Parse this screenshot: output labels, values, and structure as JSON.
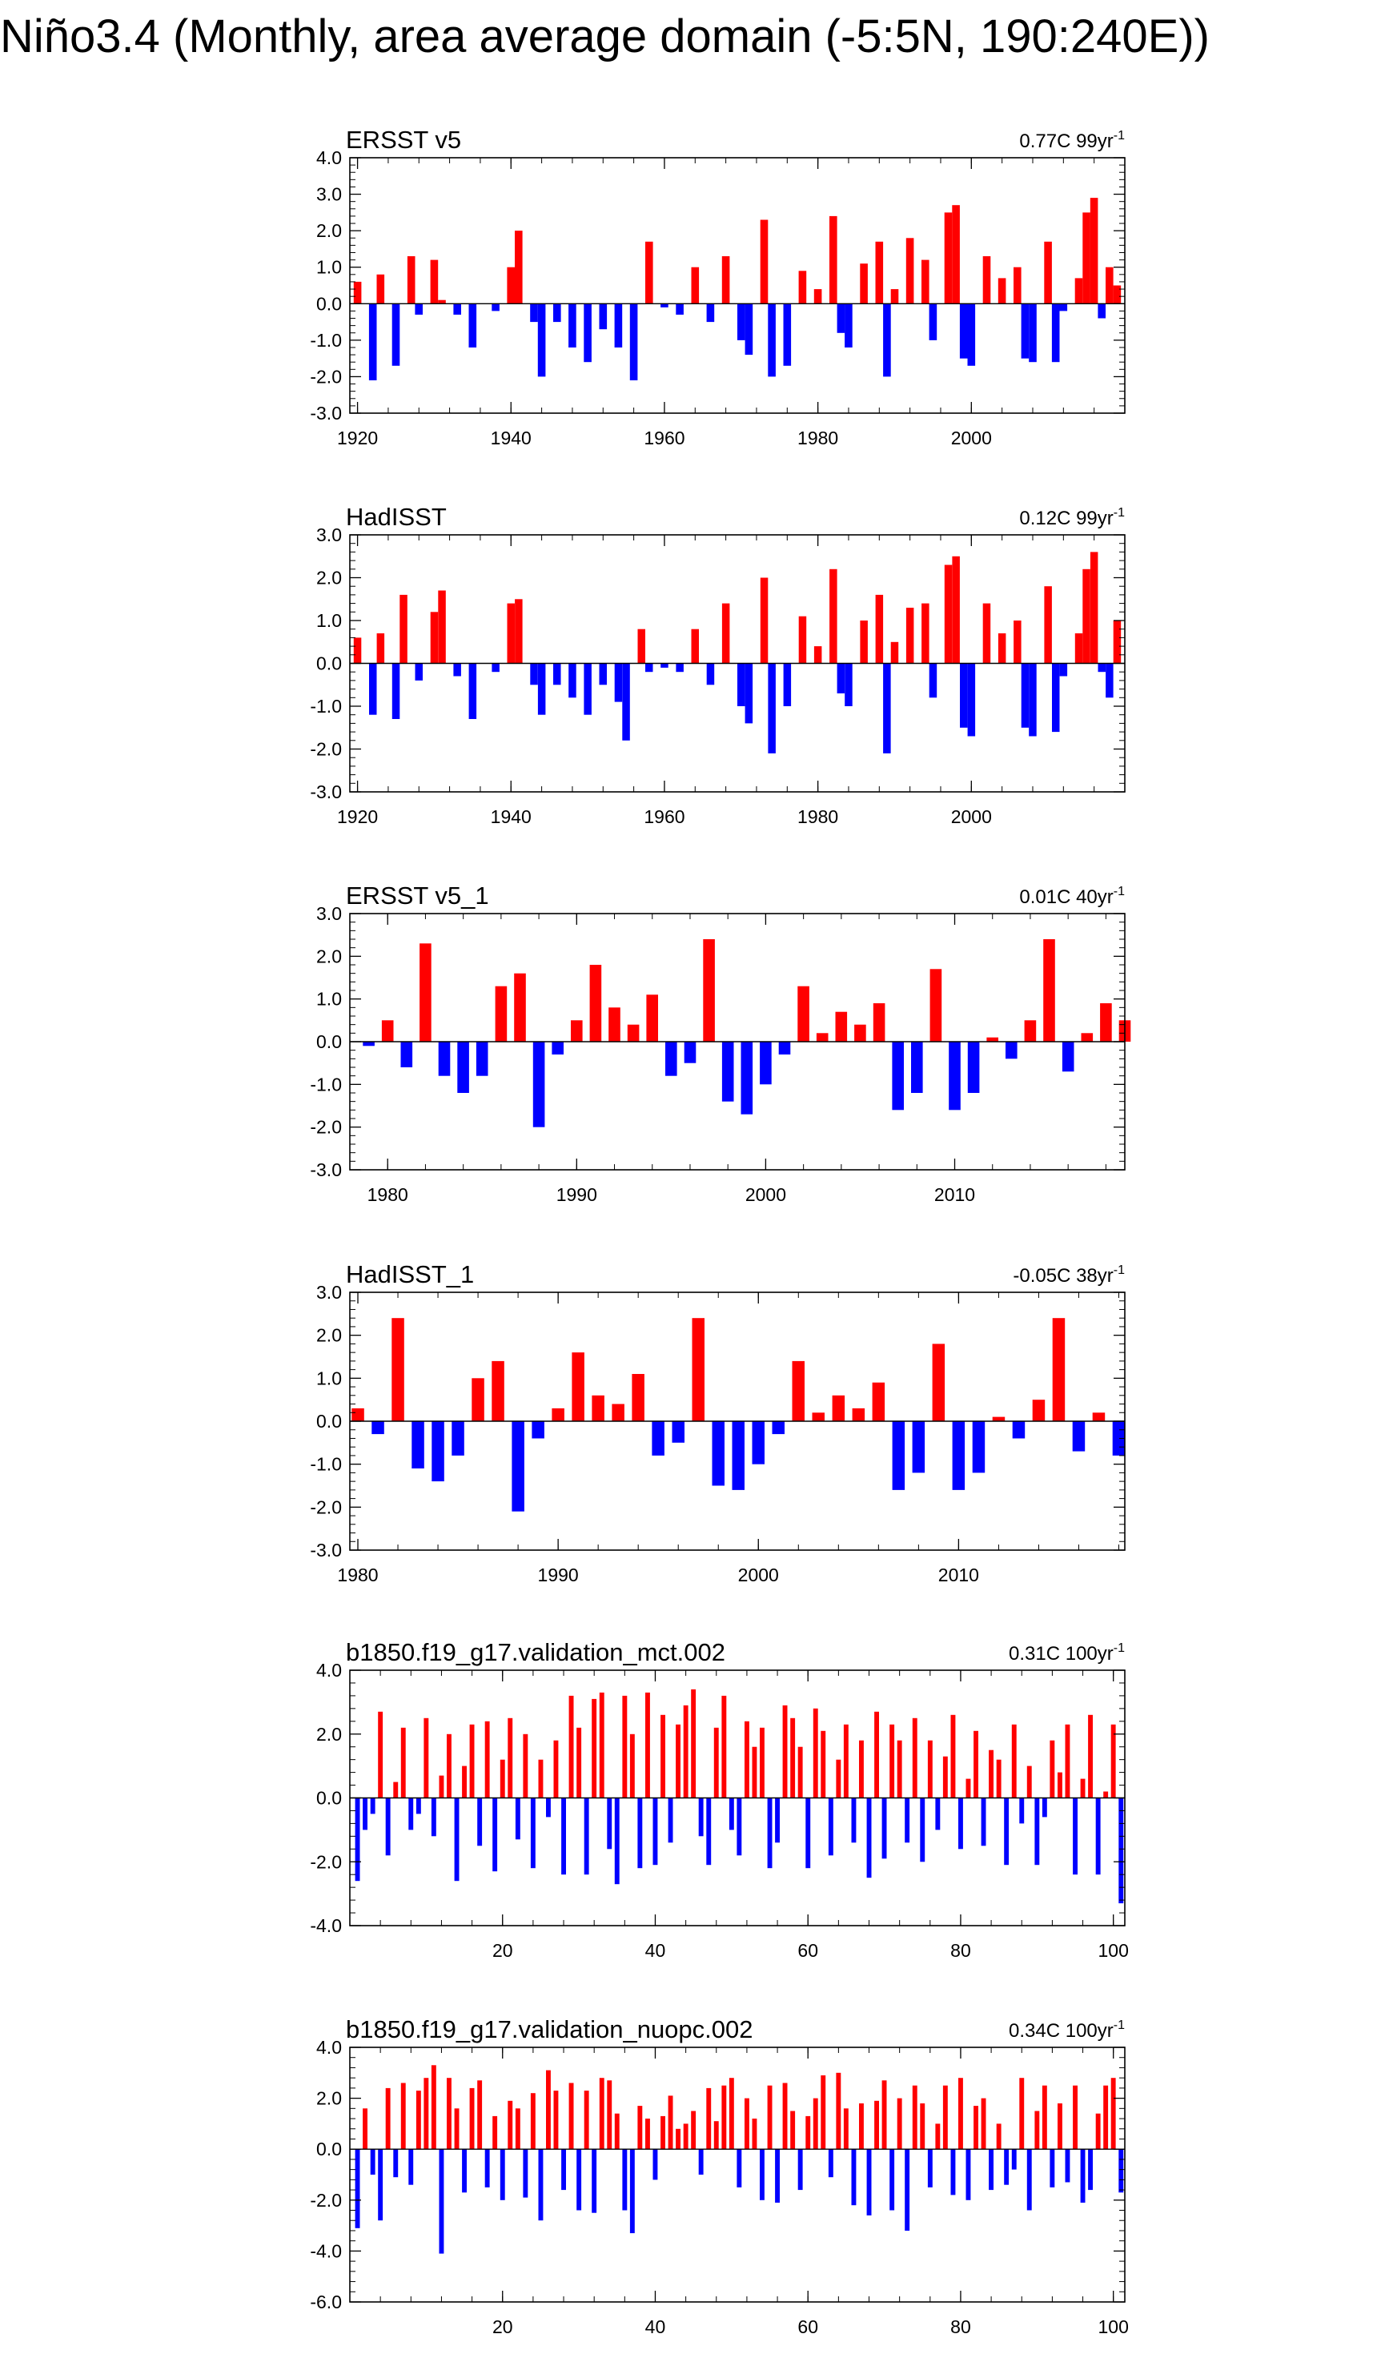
{
  "page_title": "Niño3.4 (Monthly, area average domain (-5:5N, 190:240E))",
  "colors": {
    "positive": "#ff0000",
    "negative": "#0000ff"
  },
  "chart_data": [
    {
      "type": "area",
      "title": "ERSST v5",
      "trend": {
        "value": "0.77C",
        "unit": "99yr",
        "exp": "-1"
      },
      "x": [
        1920,
        1922,
        1923,
        1925,
        1927,
        1928,
        1930,
        1931,
        1933,
        1935,
        1938,
        1940,
        1941,
        1943,
        1944,
        1946,
        1948,
        1950,
        1952,
        1954,
        1956,
        1958,
        1960,
        1962,
        1964,
        1966,
        1968,
        1970,
        1971,
        1973,
        1974,
        1976,
        1978,
        1980,
        1982,
        1983,
        1984,
        1986,
        1988,
        1989,
        1990,
        1992,
        1994,
        1995,
        1997,
        1998,
        1999,
        2000,
        2002,
        2004,
        2006,
        2007,
        2008,
        2010,
        2011,
        2012,
        2014,
        2015,
        2016,
        2017,
        2018,
        2019
      ],
      "values": [
        0.6,
        -2.1,
        0.8,
        -1.7,
        1.3,
        -0.3,
        1.2,
        0.1,
        -0.3,
        -1.2,
        -0.2,
        1.0,
        2.0,
        -0.5,
        -2.0,
        -0.5,
        -1.2,
        -1.6,
        -0.7,
        -1.2,
        -2.1,
        1.7,
        -0.1,
        -0.3,
        1.0,
        -0.5,
        1.3,
        -1.0,
        -1.4,
        2.3,
        -2.0,
        -1.7,
        0.9,
        0.4,
        2.4,
        -0.8,
        -1.2,
        1.1,
        1.7,
        -2.0,
        0.4,
        1.8,
        1.2,
        -1.0,
        2.5,
        2.7,
        -1.5,
        -1.7,
        1.3,
        0.7,
        1.0,
        -1.5,
        -1.6,
        1.7,
        -1.6,
        -0.2,
        0.7,
        2.5,
        2.9,
        -0.4,
        1.0,
        0.5
      ],
      "xlim": [
        1919,
        2020
      ],
      "ylim": [
        -3.0,
        4.0
      ],
      "ytick_values": [
        -3.0,
        -2.0,
        -1.0,
        0.0,
        1.0,
        2.0,
        3.0,
        4.0
      ],
      "ytick_labels": [
        "-3.0",
        "-2.0",
        "-1.0",
        "0.0",
        "1.0",
        "2.0",
        "3.0",
        "4.0"
      ],
      "xtick_values": [
        1920,
        1940,
        1960,
        1980,
        2000
      ],
      "xtick_labels": [
        "1920",
        "1940",
        "1960",
        "1980",
        "2000"
      ]
    },
    {
      "type": "area",
      "title": "HadISST",
      "trend": {
        "value": "0.12C",
        "unit": "99yr",
        "exp": "-1"
      },
      "x": [
        1920,
        1922,
        1923,
        1925,
        1926,
        1928,
        1930,
        1931,
        1933,
        1935,
        1938,
        1940,
        1941,
        1943,
        1944,
        1946,
        1948,
        1950,
        1952,
        1954,
        1955,
        1957,
        1958,
        1960,
        1962,
        1964,
        1966,
        1968,
        1970,
        1971,
        1973,
        1974,
        1976,
        1978,
        1980,
        1982,
        1983,
        1984,
        1986,
        1988,
        1989,
        1990,
        1992,
        1994,
        1995,
        1997,
        1998,
        1999,
        2000,
        2002,
        2004,
        2006,
        2007,
        2008,
        2010,
        2011,
        2012,
        2014,
        2015,
        2016,
        2017,
        2018,
        2019
      ],
      "values": [
        0.6,
        -1.2,
        0.7,
        -1.3,
        1.6,
        -0.4,
        1.2,
        1.7,
        -0.3,
        -1.3,
        -0.2,
        1.4,
        1.5,
        -0.5,
        -1.2,
        -0.5,
        -0.8,
        -1.2,
        -0.5,
        -0.9,
        -1.8,
        0.8,
        -0.2,
        -0.1,
        -0.2,
        0.8,
        -0.5,
        1.4,
        -1.0,
        -1.4,
        2.0,
        -2.1,
        -1.0,
        1.1,
        0.4,
        2.2,
        -0.7,
        -1.0,
        1.0,
        1.6,
        -2.1,
        0.5,
        1.3,
        1.4,
        -0.8,
        2.3,
        2.5,
        -1.5,
        -1.7,
        1.4,
        0.7,
        1.0,
        -1.5,
        -1.7,
        1.8,
        -1.6,
        -0.3,
        0.7,
        2.2,
        2.6,
        -0.2,
        -0.8,
        1.0
      ],
      "xlim": [
        1919,
        2020
      ],
      "ylim": [
        -3.0,
        3.0
      ],
      "ytick_values": [
        -3.0,
        -2.0,
        -1.0,
        0.0,
        1.0,
        2.0,
        3.0
      ],
      "ytick_labels": [
        "-3.0",
        "-2.0",
        "-1.0",
        "0.0",
        "1.0",
        "2.0",
        "3.0"
      ],
      "xtick_values": [
        1920,
        1940,
        1960,
        1980,
        2000
      ],
      "xtick_labels": [
        "1920",
        "1940",
        "1960",
        "1980",
        "2000"
      ]
    },
    {
      "type": "area",
      "title": "ERSST v5_1",
      "trend": {
        "value": "0.01C",
        "unit": "40yr",
        "exp": "-1"
      },
      "x": [
        1979,
        1980,
        1981,
        1982,
        1983,
        1984,
        1985,
        1986,
        1987,
        1988,
        1989,
        1990,
        1991,
        1992,
        1993,
        1994,
        1995,
        1996,
        1997,
        1998,
        1999,
        2000,
        2001,
        2002,
        2003,
        2004,
        2005,
        2006,
        2007,
        2008,
        2009,
        2010,
        2011,
        2012,
        2013,
        2014,
        2015,
        2016,
        2017,
        2018,
        2019
      ],
      "values": [
        -0.1,
        0.5,
        -0.6,
        2.3,
        -0.8,
        -1.2,
        -0.8,
        1.3,
        1.6,
        -2.0,
        -0.3,
        0.5,
        1.8,
        0.8,
        0.4,
        1.1,
        -0.8,
        -0.5,
        2.4,
        -1.4,
        -1.7,
        -1.0,
        -0.3,
        1.3,
        0.2,
        0.7,
        0.4,
        0.9,
        -1.6,
        -1.2,
        1.7,
        -1.6,
        -1.2,
        0.1,
        -0.4,
        0.5,
        2.4,
        -0.7,
        0.2,
        0.9,
        0.5
      ],
      "xlim": [
        1978,
        2019
      ],
      "ylim": [
        -3.0,
        3.0
      ],
      "ytick_values": [
        -3.0,
        -2.0,
        -1.0,
        0.0,
        1.0,
        2.0,
        3.0
      ],
      "ytick_labels": [
        "-3.0",
        "-2.0",
        "-1.0",
        "0.0",
        "1.0",
        "2.0",
        "3.0"
      ],
      "xtick_values": [
        1980,
        1990,
        2000,
        2010
      ],
      "xtick_labels": [
        "1980",
        "1990",
        "2000",
        "2010"
      ]
    },
    {
      "type": "area",
      "title": "HadISST_1",
      "trend": {
        "value": "-0.05C",
        "unit": "38yr",
        "exp": "-1"
      },
      "x": [
        1980,
        1981,
        1982,
        1983,
        1984,
        1985,
        1986,
        1987,
        1988,
        1989,
        1990,
        1991,
        1992,
        1993,
        1994,
        1995,
        1996,
        1997,
        1998,
        1999,
        2000,
        2001,
        2002,
        2003,
        2004,
        2005,
        2006,
        2007,
        2008,
        2009,
        2010,
        2011,
        2012,
        2013,
        2014,
        2015,
        2016,
        2017,
        2018
      ],
      "values": [
        0.3,
        -0.3,
        2.4,
        -1.1,
        -1.4,
        -0.8,
        1.0,
        1.4,
        -2.1,
        -0.4,
        0.3,
        1.6,
        0.6,
        0.4,
        1.1,
        -0.8,
        -0.5,
        2.4,
        -1.5,
        -1.6,
        -1.0,
        -0.3,
        1.4,
        0.2,
        0.6,
        0.3,
        0.9,
        -1.6,
        -1.2,
        1.8,
        -1.6,
        -1.2,
        0.1,
        -0.4,
        0.5,
        2.4,
        -0.7,
        0.2,
        -0.8
      ],
      "xlim": [
        1979.6,
        2018.3
      ],
      "ylim": [
        -3.0,
        3.0
      ],
      "ytick_values": [
        -3.0,
        -2.0,
        -1.0,
        0.0,
        1.0,
        2.0,
        3.0
      ],
      "ytick_labels": [
        "-3.0",
        "-2.0",
        "-1.0",
        "0.0",
        "1.0",
        "2.0",
        "3.0"
      ],
      "xtick_values": [
        1980,
        1990,
        2000,
        2010
      ],
      "xtick_labels": [
        "1980",
        "1990",
        "2000",
        "2010"
      ]
    },
    {
      "type": "area",
      "title": "b1850.f19_g17.validation_mct.002",
      "trend": {
        "value": "0.31C",
        "unit": "100yr",
        "exp": "-1"
      },
      "x": [
        1,
        2,
        3,
        4,
        5,
        6,
        7,
        8,
        9,
        10,
        11,
        12,
        13,
        14,
        15,
        16,
        17,
        18,
        19,
        20,
        21,
        22,
        23,
        24,
        25,
        26,
        27,
        28,
        29,
        30,
        31,
        32,
        33,
        34,
        35,
        36,
        37,
        38,
        39,
        40,
        41,
        42,
        43,
        44,
        45,
        46,
        47,
        48,
        49,
        50,
        51,
        52,
        53,
        54,
        55,
        56,
        57,
        58,
        59,
        60,
        61,
        62,
        63,
        64,
        65,
        66,
        67,
        68,
        69,
        70,
        71,
        72,
        73,
        74,
        75,
        76,
        77,
        78,
        79,
        80,
        81,
        82,
        83,
        84,
        85,
        86,
        87,
        88,
        89,
        90,
        91,
        92,
        93,
        94,
        95,
        96,
        97,
        98,
        99,
        100,
        101
      ],
      "values": [
        -2.6,
        -1.0,
        -0.5,
        2.7,
        -1.8,
        0.5,
        2.2,
        -1.0,
        -0.5,
        2.5,
        -1.2,
        0.7,
        2.0,
        -2.6,
        1.0,
        2.3,
        -1.5,
        2.4,
        -2.3,
        1.2,
        2.5,
        -1.3,
        2.0,
        -2.2,
        1.2,
        -0.6,
        1.8,
        -2.4,
        3.2,
        2.2,
        -2.4,
        3.1,
        3.3,
        -1.6,
        -2.7,
        3.2,
        2.0,
        -2.2,
        3.3,
        -2.1,
        2.6,
        -1.4,
        2.3,
        2.9,
        3.4,
        -1.2,
        -2.1,
        2.2,
        3.2,
        -1.0,
        -1.8,
        2.4,
        1.6,
        2.2,
        -2.2,
        -1.4,
        2.9,
        2.5,
        1.6,
        -2.2,
        2.8,
        2.1,
        -1.8,
        1.2,
        2.3,
        -1.4,
        1.8,
        -2.5,
        2.7,
        -1.9,
        2.3,
        1.8,
        -1.4,
        2.5,
        -2.0,
        1.8,
        -1.0,
        1.3,
        2.6,
        -1.6,
        0.6,
        2.1,
        -1.5,
        1.5,
        1.2,
        -2.1,
        2.3,
        -0.8,
        1.0,
        -2.1,
        -0.6,
        1.8,
        0.8,
        2.3,
        -2.4,
        0.6,
        2.6,
        -2.4,
        0.2,
        2.3,
        -3.3
      ],
      "xlim": [
        0,
        101.5
      ],
      "ylim": [
        -4.0,
        4.0
      ],
      "ytick_values": [
        -4.0,
        -2.0,
        0.0,
        2.0,
        4.0
      ],
      "ytick_labels": [
        "-4.0",
        "-2.0",
        "0.0",
        "2.0",
        "4.0"
      ],
      "xtick_values": [
        20,
        40,
        60,
        80,
        100
      ],
      "xtick_labels": [
        "20",
        "40",
        "60",
        "80",
        "100"
      ]
    },
    {
      "type": "area",
      "title": "b1850.f19_g17.validation_nuopc.002",
      "trend": {
        "value": "0.34C",
        "unit": "100yr",
        "exp": "-1"
      },
      "x": [
        1,
        2,
        3,
        4,
        5,
        6,
        7,
        8,
        9,
        10,
        11,
        12,
        13,
        14,
        15,
        16,
        17,
        18,
        19,
        20,
        21,
        22,
        23,
        24,
        25,
        26,
        27,
        28,
        29,
        30,
        31,
        32,
        33,
        34,
        35,
        36,
        37,
        38,
        39,
        40,
        41,
        42,
        43,
        44,
        45,
        46,
        47,
        48,
        49,
        50,
        51,
        52,
        53,
        54,
        55,
        56,
        57,
        58,
        59,
        60,
        61,
        62,
        63,
        64,
        65,
        66,
        67,
        68,
        69,
        70,
        71,
        72,
        73,
        74,
        75,
        76,
        77,
        78,
        79,
        80,
        81,
        82,
        83,
        84,
        85,
        86,
        87,
        88,
        89,
        90,
        91,
        92,
        93,
        94,
        95,
        96,
        97,
        98,
        99,
        100,
        101
      ],
      "values": [
        -3.1,
        1.6,
        -1.0,
        -2.8,
        2.4,
        -1.1,
        2.6,
        -1.4,
        2.3,
        2.8,
        3.3,
        -4.1,
        2.8,
        1.6,
        -1.7,
        2.4,
        2.7,
        -1.5,
        1.3,
        -2.0,
        1.9,
        1.6,
        -1.9,
        2.2,
        -2.8,
        3.1,
        2.3,
        -1.6,
        2.6,
        -2.4,
        2.3,
        -2.5,
        2.8,
        2.7,
        1.4,
        -2.4,
        -3.3,
        1.7,
        1.2,
        -1.2,
        1.3,
        2.1,
        0.8,
        1.0,
        1.5,
        -1.0,
        2.4,
        1.1,
        2.5,
        2.8,
        -1.5,
        2.0,
        1.2,
        -2.0,
        2.5,
        -2.1,
        2.6,
        1.5,
        -1.6,
        1.3,
        2.0,
        2.9,
        -1.1,
        3.0,
        1.6,
        -2.2,
        1.8,
        -2.6,
        1.9,
        2.7,
        -2.4,
        2.0,
        -3.2,
        2.5,
        1.8,
        -1.5,
        1.0,
        2.5,
        -1.8,
        2.8,
        -2.0,
        1.7,
        2.0,
        -1.6,
        1.0,
        -1.4,
        -0.8,
        2.8,
        -2.4,
        1.5,
        2.5,
        -1.5,
        1.8,
        -1.3,
        2.5,
        -2.1,
        -1.6,
        1.4,
        2.5,
        2.8,
        -1.7
      ],
      "xlim": [
        0,
        101.5
      ],
      "ylim": [
        -6.0,
        4.0
      ],
      "ytick_values": [
        -6.0,
        -4.0,
        -2.0,
        0.0,
        2.0,
        4.0
      ],
      "ytick_labels": [
        "-6.0",
        "-4.0",
        "-2.0",
        "0.0",
        "2.0",
        "4.0"
      ],
      "xtick_values": [
        20,
        40,
        60,
        80,
        100
      ],
      "xtick_labels": [
        "20",
        "40",
        "60",
        "80",
        "100"
      ]
    }
  ]
}
